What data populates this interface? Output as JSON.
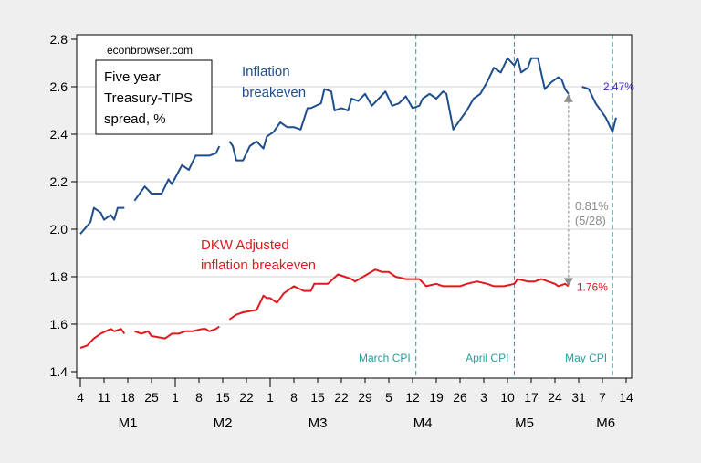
{
  "chart_data": {
    "type": "line",
    "watermark": "econbrowser.com",
    "legend_box": [
      "Five year",
      "Treasury-TIPS",
      "spread, %"
    ],
    "ylim": [
      1.4,
      2.8
    ],
    "yticks": [
      1.4,
      1.6,
      1.8,
      2.0,
      2.2,
      2.4,
      2.6,
      2.8
    ],
    "grid": true,
    "xlim": [
      "M1-4",
      "M6-14"
    ],
    "xticks": [
      "M1-4",
      "M1-11",
      "M1-18",
      "M1-25",
      "M2-1",
      "M2-8",
      "M2-15",
      "M2-22",
      "M3-1",
      "M3-8",
      "M3-15",
      "M3-22",
      "M3-29",
      "M4-5",
      "M4-12",
      "M4-19",
      "M4-26",
      "M5-3",
      "M5-10",
      "M5-17",
      "M5-24",
      "M5-31",
      "M6-7",
      "M6-14"
    ],
    "xtick_labels": [
      "4",
      "11",
      "18",
      "25",
      "1",
      "8",
      "15",
      "22",
      "1",
      "8",
      "15",
      "22",
      "29",
      "5",
      "12",
      "19",
      "26",
      "3",
      "10",
      "17",
      "24",
      "31",
      "7",
      "14"
    ],
    "months": [
      {
        "label": "M1",
        "center": "M1-18"
      },
      {
        "label": "M2",
        "center": "M2-15"
      },
      {
        "label": "M3",
        "center": "M3-15"
      },
      {
        "label": "M4",
        "center": "M4-15"
      },
      {
        "label": "M5",
        "center": "M5-15"
      },
      {
        "label": "M6",
        "center": "M6-8"
      }
    ],
    "vlines": [
      {
        "x": "M4-13",
        "label": "March CPI"
      },
      {
        "x": "M5-12",
        "label": "April CPI"
      },
      {
        "x": "M6-10",
        "label": "May CPI"
      }
    ],
    "series": [
      {
        "name": "Inflation breakeven",
        "label_lines": [
          "Inflation",
          "breakeven"
        ],
        "color": "#1f4e8c",
        "end_label": "2.47%",
        "end_label_color": "#3a2bd1",
        "points": [
          [
            "M1-4",
            1.98
          ],
          [
            "M1-7",
            2.03
          ],
          [
            "M1-8",
            2.09
          ],
          [
            "M1-10",
            2.07
          ],
          [
            "M1-11",
            2.04
          ],
          [
            "M1-13",
            2.06
          ],
          [
            "M1-14",
            2.04
          ],
          [
            "M1-15",
            2.09
          ],
          [
            "M1-17",
            2.09
          ],
          null,
          [
            "M1-20",
            2.12
          ],
          [
            "M1-23",
            2.18
          ],
          [
            "M1-25",
            2.15
          ],
          [
            "M1-28",
            2.15
          ],
          [
            "M1-30",
            2.21
          ],
          [
            "M1-31",
            2.19
          ],
          [
            "M2-3",
            2.27
          ],
          [
            "M2-5",
            2.25
          ],
          [
            "M2-7",
            2.31
          ],
          [
            "M2-11",
            2.31
          ],
          [
            "M2-13",
            2.32
          ],
          [
            "M2-14",
            2.35
          ],
          null,
          [
            "M2-17",
            2.37
          ],
          [
            "M2-18",
            2.35
          ],
          [
            "M2-19",
            2.29
          ],
          [
            "M2-21",
            2.29
          ],
          [
            "M2-23",
            2.35
          ],
          [
            "M2-25",
            2.37
          ],
          [
            "M2-27",
            2.34
          ],
          [
            "M2-28",
            2.39
          ],
          [
            "M3-2",
            2.41
          ],
          [
            "M3-4",
            2.45
          ],
          [
            "M3-6",
            2.43
          ],
          [
            "M3-8",
            2.43
          ],
          [
            "M3-10",
            2.42
          ],
          [
            "M3-12",
            2.51
          ],
          [
            "M3-13",
            2.51
          ],
          [
            "M3-16",
            2.53
          ],
          [
            "M3-17",
            2.59
          ],
          [
            "M3-19",
            2.58
          ],
          [
            "M3-20",
            2.5
          ],
          [
            "M3-22",
            2.51
          ],
          [
            "M3-24",
            2.5
          ],
          [
            "M3-25",
            2.55
          ],
          [
            "M3-27",
            2.54
          ],
          [
            "M3-29",
            2.57
          ],
          [
            "M3-31",
            2.52
          ],
          [
            "M4-2",
            2.55
          ],
          [
            "M4-4",
            2.58
          ],
          [
            "M4-6",
            2.52
          ],
          [
            "M4-8",
            2.53
          ],
          [
            "M4-10",
            2.56
          ],
          [
            "M4-12",
            2.51
          ],
          [
            "M4-14",
            2.52
          ],
          [
            "M4-15",
            2.55
          ],
          [
            "M4-17",
            2.57
          ],
          [
            "M4-19",
            2.55
          ],
          [
            "M4-21",
            2.58
          ],
          [
            "M4-22",
            2.57
          ],
          [
            "M4-24",
            2.42
          ],
          [
            "M4-25",
            2.44
          ],
          [
            "M4-28",
            2.5
          ],
          [
            "M4-30",
            2.55
          ],
          [
            "M5-2",
            2.57
          ],
          [
            "M5-4",
            2.62
          ],
          [
            "M5-6",
            2.68
          ],
          [
            "M5-8",
            2.66
          ],
          [
            "M5-10",
            2.72
          ],
          [
            "M5-12",
            2.69
          ],
          [
            "M5-13",
            2.72
          ],
          [
            "M5-14",
            2.66
          ],
          [
            "M5-16",
            2.68
          ],
          [
            "M5-17",
            2.72
          ],
          [
            "M5-19",
            2.72
          ],
          [
            "M5-21",
            2.59
          ],
          [
            "M5-23",
            2.62
          ],
          [
            "M5-25",
            2.64
          ],
          [
            "M5-26",
            2.63
          ],
          [
            "M5-27",
            2.59
          ],
          [
            "M5-28",
            2.57
          ],
          null,
          [
            "M6-1",
            2.6
          ],
          [
            "M6-3",
            2.59
          ],
          [
            "M6-5",
            2.53
          ],
          [
            "M6-8",
            2.47
          ],
          [
            "M6-10",
            2.41
          ],
          [
            "M6-11",
            2.47
          ]
        ]
      },
      {
        "name": "DKW Adjusted inflation breakeven",
        "label_lines": [
          "DKW Adjusted",
          "inflation breakeven"
        ],
        "color": "#e0191e",
        "end_label": "1.76%",
        "end_label_color": "#e0191e",
        "points": [
          [
            "M1-4",
            1.5
          ],
          [
            "M1-6",
            1.51
          ],
          [
            "M1-8",
            1.54
          ],
          [
            "M1-10",
            1.56
          ],
          [
            "M1-13",
            1.58
          ],
          [
            "M1-14",
            1.57
          ],
          [
            "M1-16",
            1.58
          ],
          [
            "M1-17",
            1.56
          ],
          null,
          [
            "M1-20",
            1.57
          ],
          [
            "M1-22",
            1.56
          ],
          [
            "M1-24",
            1.57
          ],
          [
            "M1-25",
            1.55
          ],
          [
            "M1-29",
            1.54
          ],
          [
            "M1-31",
            1.56
          ],
          [
            "M2-2",
            1.56
          ],
          [
            "M2-4",
            1.57
          ],
          [
            "M2-6",
            1.57
          ],
          [
            "M2-9",
            1.58
          ],
          [
            "M2-10",
            1.58
          ],
          [
            "M2-11",
            1.57
          ],
          [
            "M2-13",
            1.58
          ],
          [
            "M2-14",
            1.59
          ],
          null,
          [
            "M2-17",
            1.62
          ],
          [
            "M2-19",
            1.64
          ],
          [
            "M2-21",
            1.65
          ],
          [
            "M2-25",
            1.66
          ],
          [
            "M2-27",
            1.72
          ],
          [
            "M2-28",
            1.71
          ],
          [
            "M3-1",
            1.71
          ],
          [
            "M3-3",
            1.69
          ],
          [
            "M3-5",
            1.73
          ],
          [
            "M3-8",
            1.76
          ],
          [
            "M3-11",
            1.74
          ],
          [
            "M3-13",
            1.74
          ],
          [
            "M3-14",
            1.77
          ],
          [
            "M3-18",
            1.77
          ],
          [
            "M3-21",
            1.81
          ],
          [
            "M3-23",
            1.8
          ],
          [
            "M3-25",
            1.79
          ],
          [
            "M3-26",
            1.78
          ],
          [
            "M4-1",
            1.83
          ],
          [
            "M4-3",
            1.82
          ],
          [
            "M4-5",
            1.82
          ],
          [
            "M4-7",
            1.8
          ],
          [
            "M4-10",
            1.79
          ],
          [
            "M4-11",
            1.79
          ],
          [
            "M4-14",
            1.79
          ],
          [
            "M4-16",
            1.76
          ],
          [
            "M4-19",
            1.77
          ],
          [
            "M4-21",
            1.76
          ],
          [
            "M4-24",
            1.76
          ],
          [
            "M4-26",
            1.76
          ],
          [
            "M4-28",
            1.77
          ],
          [
            "M5-1",
            1.78
          ],
          [
            "M5-4",
            1.77
          ],
          [
            "M5-6",
            1.76
          ],
          [
            "M5-9",
            1.76
          ],
          [
            "M5-12",
            1.77
          ],
          [
            "M5-13",
            1.79
          ],
          [
            "M5-16",
            1.78
          ],
          [
            "M5-18",
            1.78
          ],
          [
            "M5-20",
            1.79
          ],
          [
            "M5-22",
            1.78
          ],
          [
            "M5-24",
            1.77
          ],
          [
            "M5-25",
            1.76
          ],
          [
            "M5-27",
            1.77
          ],
          [
            "M5-28",
            1.76
          ]
        ]
      }
    ],
    "spread_annotation": {
      "x": "M5-28",
      "from": 1.76,
      "to": 2.57,
      "label": "0.81%",
      "sublabel": "(5/28)",
      "color": "#8c8c8c"
    },
    "vline_color": "#2a9d9d"
  }
}
